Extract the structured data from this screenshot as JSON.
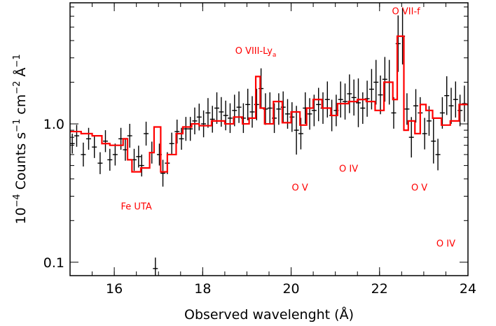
{
  "chart_data": {
    "type": "line",
    "title": "",
    "xlabel": "Observed wavelenght (Å)",
    "ylabel": {
      "p1": "10",
      "p1_sup": "−4",
      "p2": " Counts s",
      "p2_sup": "−1",
      "p3": " cm",
      "p3_sup": "−2",
      "p4": " Å",
      "p4_sup": "−1"
    },
    "xlim": [
      15.0,
      24.0
    ],
    "ylim": [
      0.08,
      7.5
    ],
    "yscale": "log",
    "grid": false,
    "x_ticks": [
      16,
      18,
      20,
      22,
      24
    ],
    "x_tick_labels": [
      "16",
      "18",
      "20",
      "22",
      "24"
    ],
    "y_ticks": [
      0.1,
      1.0
    ],
    "y_tick_labels": [
      "0.1",
      "1.0"
    ],
    "colors": {
      "data": "#000000",
      "model": "#ff0000"
    },
    "annotations": [
      {
        "text": "O VIII-Ly",
        "sub": "a",
        "x": 19.2,
        "y": 3.2
      },
      {
        "text": "O VII-f",
        "x": 22.6,
        "y": 6.2
      },
      {
        "text": "Fe UTA",
        "x": 16.5,
        "y": 0.24
      },
      {
        "text": "O V",
        "x": 20.2,
        "y": 0.33
      },
      {
        "text": "O IV",
        "x": 21.3,
        "y": 0.45
      },
      {
        "text": "O V",
        "x": 22.9,
        "y": 0.33
      },
      {
        "text": "O IV",
        "x": 23.5,
        "y": 0.13
      }
    ],
    "series": [
      {
        "style": "errorbar",
        "x": [
          15.05,
          15.15,
          15.3,
          15.42,
          15.55,
          15.68,
          15.8,
          15.9,
          16.02,
          16.15,
          16.25,
          16.35,
          16.45,
          16.55,
          16.62,
          16.72,
          16.85,
          16.93,
          17.02,
          17.1,
          17.2,
          17.3,
          17.42,
          17.52,
          17.62,
          17.72,
          17.82,
          17.92,
          18.02,
          18.12,
          18.22,
          18.32,
          18.42,
          18.52,
          18.62,
          18.72,
          18.82,
          18.92,
          19.02,
          19.12,
          19.22,
          19.32,
          19.42,
          19.52,
          19.62,
          19.72,
          19.82,
          19.92,
          20.02,
          20.12,
          20.22,
          20.32,
          20.42,
          20.52,
          20.62,
          20.72,
          20.82,
          20.92,
          21.02,
          21.12,
          21.22,
          21.32,
          21.42,
          21.52,
          21.62,
          21.72,
          21.82,
          21.92,
          22.02,
          22.12,
          22.22,
          22.32,
          22.42,
          22.52,
          22.62,
          22.72,
          22.82,
          22.92,
          23.02,
          23.12,
          23.22,
          23.32,
          23.42,
          23.52,
          23.62,
          23.72,
          23.82,
          23.92
        ],
        "y": [
          0.72,
          0.82,
          0.6,
          0.78,
          0.68,
          0.52,
          0.75,
          0.55,
          0.6,
          0.78,
          0.65,
          0.82,
          0.55,
          0.58,
          0.5,
          0.85,
          0.62,
          0.09,
          0.6,
          0.44,
          0.52,
          0.72,
          0.88,
          0.78,
          0.92,
          0.92,
          1.05,
          1.12,
          1.0,
          1.2,
          1.08,
          1.3,
          1.22,
          1.15,
          1.1,
          1.25,
          1.32,
          1.1,
          1.38,
          1.22,
          1.38,
          1.8,
          1.28,
          1.3,
          1.1,
          1.28,
          1.32,
          1.18,
          1.12,
          0.9,
          0.85,
          1.3,
          1.18,
          1.25,
          1.38,
          1.3,
          1.5,
          1.15,
          1.25,
          1.5,
          1.45,
          1.65,
          1.55,
          1.42,
          1.3,
          1.52,
          1.78,
          2.0,
          1.62,
          2.1,
          2.0,
          1.2,
          3.8,
          4.3,
          1.28,
          0.8,
          1.35,
          1.2,
          0.85,
          1.05,
          0.75,
          0.6,
          1.2,
          1.6,
          1.35,
          1.5,
          1.25,
          1.4
        ],
        "yerr": [
          0.18,
          0.2,
          0.22,
          0.2,
          0.2,
          0.2,
          0.2,
          0.2,
          0.2,
          0.2,
          0.2,
          0.22,
          0.2,
          0.2,
          0.2,
          0.22,
          0.2,
          0.2,
          0.2,
          0.25,
          0.2,
          0.2,
          0.22,
          0.2,
          0.22,
          0.22,
          0.25,
          0.25,
          0.25,
          0.28,
          0.25,
          0.3,
          0.28,
          0.28,
          0.28,
          0.3,
          0.3,
          0.28,
          0.3,
          0.3,
          0.3,
          0.4,
          0.3,
          0.3,
          0.28,
          0.3,
          0.3,
          0.28,
          0.28,
          0.5,
          0.3,
          0.3,
          0.3,
          0.3,
          0.32,
          0.3,
          0.35,
          0.3,
          0.3,
          0.35,
          0.35,
          0.38,
          0.35,
          0.5,
          0.3,
          0.35,
          0.4,
          0.45,
          0.38,
          0.45,
          0.45,
          0.3,
          0.6,
          0.6,
          0.3,
          0.4,
          0.32,
          0.3,
          0.3,
          0.28,
          0.45,
          0.3,
          0.3,
          0.38,
          0.35,
          0.35,
          0.3,
          0.35
        ]
      },
      {
        "style": "step",
        "x": [
          15.0,
          15.25,
          15.5,
          15.72,
          15.9,
          16.2,
          16.3,
          16.4,
          16.6,
          16.8,
          16.9,
          17.05,
          17.2,
          17.4,
          17.55,
          17.75,
          17.92,
          18.2,
          18.5,
          18.7,
          18.9,
          19.05,
          19.2,
          19.3,
          19.4,
          19.6,
          19.8,
          20.0,
          20.2,
          20.35,
          20.5,
          20.7,
          20.9,
          21.05,
          21.3,
          21.5,
          21.7,
          21.9,
          22.1,
          22.3,
          22.4,
          22.55,
          22.65,
          22.8,
          22.92,
          23.05,
          23.2,
          23.4,
          23.6,
          23.8,
          24.0
        ],
        "y": [
          0.88,
          0.85,
          0.82,
          0.72,
          0.7,
          0.78,
          0.55,
          0.45,
          0.48,
          0.62,
          0.95,
          0.45,
          0.6,
          0.85,
          0.95,
          1.0,
          0.97,
          1.05,
          1.0,
          1.12,
          1.0,
          1.1,
          2.2,
          1.3,
          1.0,
          1.45,
          1.02,
          1.22,
          0.98,
          1.3,
          1.5,
          1.3,
          1.15,
          1.4,
          1.45,
          1.5,
          1.45,
          1.25,
          2.0,
          1.5,
          4.3,
          0.9,
          1.05,
          0.85,
          1.38,
          1.25,
          1.1,
          0.98,
          1.05,
          1.38,
          1.38
        ]
      }
    ]
  }
}
